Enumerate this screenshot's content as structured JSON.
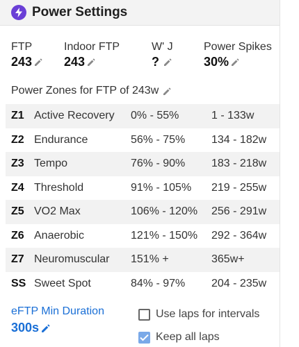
{
  "header": {
    "title": "Power Settings",
    "icon": "lightning-bolt-icon",
    "icon_color": "#6a3fd6"
  },
  "stats": [
    {
      "label": "FTP",
      "value": "243"
    },
    {
      "label": "Indoor FTP",
      "value": "243"
    },
    {
      "label": "W' J",
      "value": "?"
    },
    {
      "label": "Power Spikes",
      "value": "30%"
    }
  ],
  "zones_title": "Power Zones for FTP of 243w",
  "zones": [
    {
      "code": "Z1",
      "name": "Active Recovery",
      "pct": "0% - 55%",
      "watts": "1 - 133w"
    },
    {
      "code": "Z2",
      "name": "Endurance",
      "pct": "56% - 75%",
      "watts": "134 - 182w"
    },
    {
      "code": "Z3",
      "name": "Tempo",
      "pct": "76% - 90%",
      "watts": "183 - 218w"
    },
    {
      "code": "Z4",
      "name": "Threshold",
      "pct": "91% - 105%",
      "watts": "219 - 255w"
    },
    {
      "code": "Z5",
      "name": "VO2 Max",
      "pct": "106% - 120%",
      "watts": "256 - 291w"
    },
    {
      "code": "Z6",
      "name": "Anaerobic",
      "pct": "121% - 150%",
      "watts": "292 - 364w"
    },
    {
      "code": "Z7",
      "name": "Neuromuscular",
      "pct": "151% +",
      "watts": "365w+"
    },
    {
      "code": "SS",
      "name": "Sweet Spot",
      "pct": "84% - 97%",
      "watts": "204 - 235w"
    }
  ],
  "eftp": {
    "label": "eFTP Min Duration",
    "value": "300s"
  },
  "options": {
    "use_laps_label": "Use laps for intervals",
    "use_laps_checked": false,
    "keep_laps_label": "Keep all laps",
    "keep_laps_checked": true
  },
  "colors": {
    "accent_blue": "#1a6fd6",
    "checkbox_checked": "#7aa9e8",
    "row_shade": "#f2f2f2"
  }
}
